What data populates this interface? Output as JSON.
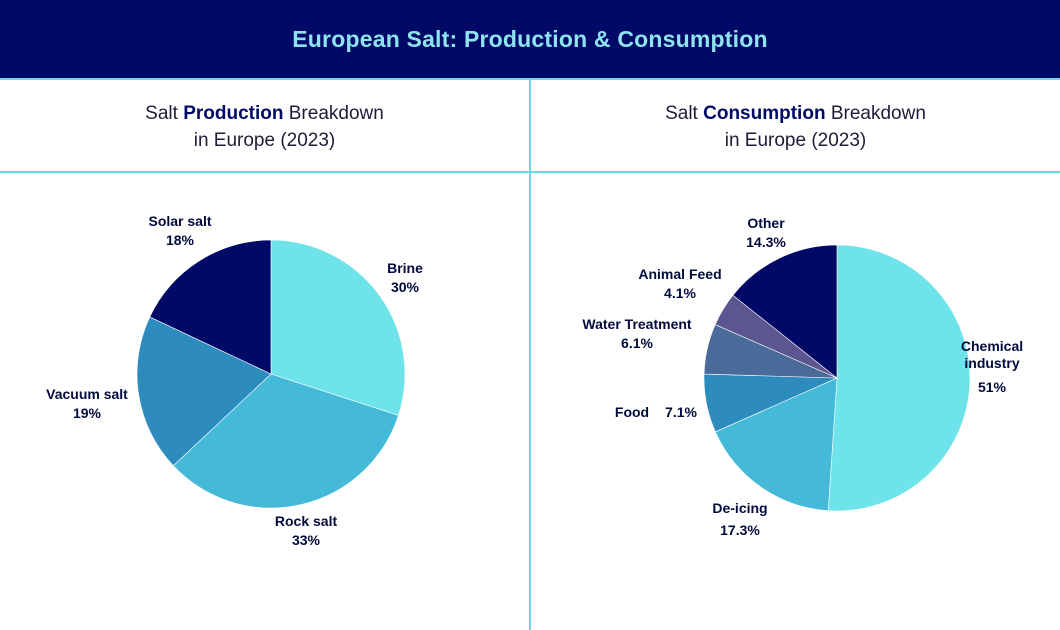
{
  "title": "European Salt: Production & Consumption",
  "chart_data": [
    {
      "type": "pie",
      "title": {
        "pre": "Salt ",
        "bold": "Production",
        "post": " Breakdown",
        "line2": "in Europe (2023)"
      },
      "slices": [
        {
          "label": "Brine",
          "value": 30,
          "value_label": "30%",
          "color": "#6ee3e9"
        },
        {
          "label": "Rock salt",
          "value": 33,
          "value_label": "33%",
          "color": "#45b9d8"
        },
        {
          "label": "Vacuum salt",
          "value": 19,
          "value_label": "19%",
          "color": "#2e8bbd"
        },
        {
          "label": "Solar salt",
          "value": 18,
          "value_label": "18%",
          "color": "#000a66"
        }
      ]
    },
    {
      "type": "pie",
      "title": {
        "pre": "Salt ",
        "bold": "Consumption",
        "post": " Breakdown",
        "line2": "in Europe (2023)"
      },
      "slices": [
        {
          "label": "Chemical industry",
          "value": 51,
          "value_label": "51%",
          "color": "#6ee3e9"
        },
        {
          "label": "De-icing",
          "value": 17.3,
          "value_label": "17.3%",
          "color": "#45b9d8"
        },
        {
          "label": "Food",
          "value": 7.1,
          "value_label": "7.1%",
          "color": "#2e8bbd"
        },
        {
          "label": "Water Treatment",
          "value": 6.1,
          "value_label": "6.1%",
          "color": "#4a6b9a"
        },
        {
          "label": "Animal Feed",
          "value": 4.1,
          "value_label": "4.1%",
          "color": "#5b5690"
        },
        {
          "label": "Other",
          "value": 14.3,
          "value_label": "14.3%",
          "color": "#000a66"
        }
      ]
    }
  ]
}
